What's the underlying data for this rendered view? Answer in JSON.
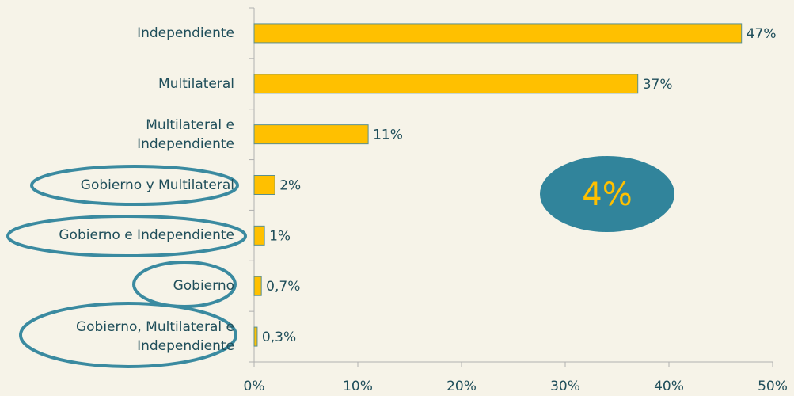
{
  "chart_data": {
    "type": "bar",
    "orientation": "horizontal",
    "categories": [
      "Independiente",
      "Multilateral",
      "Multilateral e\nIndependiente",
      "Gobierno y Multilateral",
      "Gobierno e Independiente",
      "Gobierno",
      "Gobierno, Multilateral e\nIndependiente"
    ],
    "values": [
      47,
      37,
      11,
      2,
      1,
      0.7,
      0.3
    ],
    "value_labels": [
      "47%",
      "37%",
      "11%",
      "2%",
      "1%",
      "0,7%",
      "0,3%"
    ],
    "color": "#ffc000",
    "xlim": [
      0,
      50
    ],
    "xticks": [
      {
        "value": 0,
        "label": "0%"
      },
      {
        "value": 10,
        "label": "10%"
      },
      {
        "value": 20,
        "label": "20%"
      },
      {
        "value": 30,
        "label": "30%"
      },
      {
        "value": 40,
        "label": "40%"
      },
      {
        "value": 50,
        "label": "50%"
      }
    ],
    "annotation": "4%"
  }
}
